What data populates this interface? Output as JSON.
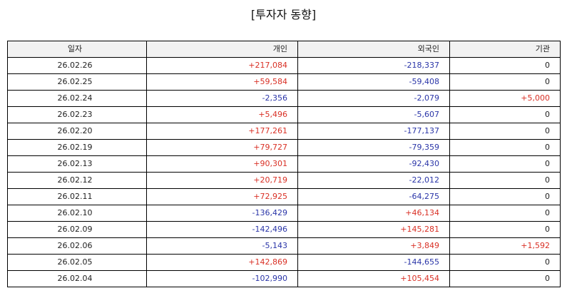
{
  "title": "[투자자 동향]",
  "colors": {
    "positive": "#d93025",
    "negative": "#2a35a8",
    "neutral": "#222222"
  },
  "table": {
    "headers": [
      "일자",
      "개인",
      "외국인",
      "기관"
    ],
    "rows": [
      [
        "26.02.26",
        "+217,084",
        "-218,337",
        "0"
      ],
      [
        "26.02.25",
        "+59,584",
        "-59,408",
        "0"
      ],
      [
        "26.02.24",
        "-2,356",
        "-2,079",
        "+5,000"
      ],
      [
        "26.02.23",
        "+5,496",
        "-5,607",
        "0"
      ],
      [
        "26.02.20",
        "+177,261",
        "-177,137",
        "0"
      ],
      [
        "26.02.19",
        "+79,727",
        "-79,359",
        "0"
      ],
      [
        "26.02.13",
        "+90,301",
        "-92,430",
        "0"
      ],
      [
        "26.02.12",
        "+20,719",
        "-22,012",
        "0"
      ],
      [
        "26.02.11",
        "+72,925",
        "-64,275",
        "0"
      ],
      [
        "26.02.10",
        "-136,429",
        "+46,134",
        "0"
      ],
      [
        "26.02.09",
        "-142,496",
        "+145,281",
        "0"
      ],
      [
        "26.02.06",
        "-5,143",
        "+3,849",
        "+1,592"
      ],
      [
        "26.02.05",
        "+142,869",
        "-144,655",
        "0"
      ],
      [
        "26.02.04",
        "-102,990",
        "+105,454",
        "0"
      ]
    ]
  }
}
